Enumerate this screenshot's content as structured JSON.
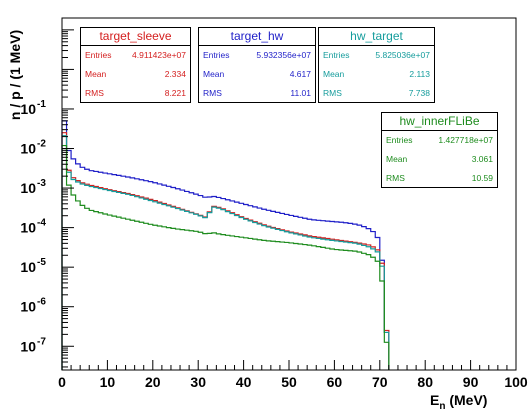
{
  "colors": {
    "target_sleeve": "#d42020",
    "target_hw": "#1f1fc8",
    "hw_target": "#159c9c",
    "hw_innerFLiBe": "#1e8c1e",
    "axis": "#000000"
  },
  "stat_boxes": [
    {
      "name": "target_sleeve",
      "color": "#d42020",
      "entries_label": "Entries",
      "entries": "4.911423e+07",
      "mean_label": "Mean",
      "mean": "2.334",
      "rms_label": "RMS",
      "rms": "8.221"
    },
    {
      "name": "target_hw",
      "color": "#1f1fc8",
      "entries_label": "Entries",
      "entries": "5.932356e+07",
      "mean_label": "Mean",
      "mean": "4.617",
      "rms_label": "RMS",
      "rms": "11.01"
    },
    {
      "name": "hw_target",
      "color": "#159c9c",
      "entries_label": "Entries",
      "entries": "5.825036e+07",
      "mean_label": "Mean",
      "mean": "2.113",
      "rms_label": "RMS",
      "rms": "7.738"
    },
    {
      "name": "hw_innerFLiBe",
      "color": "#1e8c1e",
      "entries_label": "Entries",
      "entries": "1.427718e+07",
      "mean_label": "Mean",
      "mean": "3.061",
      "rms_label": "RMS",
      "rms": "10.59"
    }
  ],
  "chart_data": {
    "type": "line",
    "style": "step-histogram",
    "title": "",
    "xlabel": "E_n (MeV)",
    "xlabel_main": "E",
    "xlabel_sub": "n",
    "xlabel_unit": " (MeV)",
    "ylabel": "n / p / (1 MeV)",
    "xlim": [
      0,
      100
    ],
    "ylim_exponent": [
      -7.6,
      1.3
    ],
    "y_scale": "log",
    "bin_width": 1,
    "x_ticks": [
      0,
      10,
      20,
      30,
      40,
      50,
      60,
      70,
      80,
      90,
      100
    ],
    "x_tick_labels": [
      "0",
      "10",
      "20",
      "30",
      "40",
      "50",
      "60",
      "70",
      "80",
      "90",
      "100"
    ],
    "y_ticks": [
      -7,
      -6,
      -5,
      -4,
      -3,
      -2,
      -1
    ],
    "y_tick_labels": [
      {
        "base": "10",
        "exp": "-7"
      },
      {
        "base": "10",
        "exp": "-6"
      },
      {
        "base": "10",
        "exp": "-5"
      },
      {
        "base": "10",
        "exp": "-4"
      },
      {
        "base": "10",
        "exp": "-3"
      },
      {
        "base": "10",
        "exp": "-2"
      },
      {
        "base": "10",
        "exp": "-1"
      }
    ],
    "grid": false,
    "series": [
      {
        "name": "target_hw",
        "color": "#1f1fc8",
        "points": [
          [
            0,
            -0.7
          ],
          [
            1,
            -1.9
          ],
          [
            2,
            -2.2
          ],
          [
            4,
            -2.45
          ],
          [
            6,
            -2.55
          ],
          [
            10,
            -2.63
          ],
          [
            15,
            -2.73
          ],
          [
            20,
            -2.85
          ],
          [
            25,
            -3.0
          ],
          [
            30,
            -3.17
          ],
          [
            32,
            -3.25
          ],
          [
            33,
            -3.2
          ],
          [
            35,
            -3.25
          ],
          [
            40,
            -3.4
          ],
          [
            45,
            -3.55
          ],
          [
            50,
            -3.68
          ],
          [
            55,
            -3.8
          ],
          [
            60,
            -3.85
          ],
          [
            62,
            -3.87
          ],
          [
            64,
            -3.9
          ],
          [
            66,
            -3.95
          ],
          [
            68,
            -4.05
          ],
          [
            69,
            -4.15
          ],
          [
            70,
            -4.35
          ],
          [
            71,
            -5.3
          ],
          [
            72,
            -8
          ]
        ]
      },
      {
        "name": "target_sleeve",
        "color": "#d42020",
        "points": [
          [
            0,
            -0.8
          ],
          [
            1,
            -2.4
          ],
          [
            2,
            -2.7
          ],
          [
            4,
            -2.85
          ],
          [
            6,
            -2.92
          ],
          [
            10,
            -3.03
          ],
          [
            15,
            -3.15
          ],
          [
            20,
            -3.3
          ],
          [
            25,
            -3.48
          ],
          [
            30,
            -3.67
          ],
          [
            32,
            -3.75
          ],
          [
            33,
            -3.45
          ],
          [
            35,
            -3.5
          ],
          [
            40,
            -3.75
          ],
          [
            45,
            -3.95
          ],
          [
            50,
            -4.1
          ],
          [
            55,
            -4.22
          ],
          [
            60,
            -4.3
          ],
          [
            65,
            -4.38
          ],
          [
            68,
            -4.45
          ],
          [
            70,
            -4.6
          ],
          [
            71,
            -5.2
          ],
          [
            72,
            -8
          ]
        ]
      },
      {
        "name": "hw_target",
        "color": "#159c9c",
        "points": [
          [
            0,
            -0.9
          ],
          [
            1,
            -2.45
          ],
          [
            2,
            -2.75
          ],
          [
            4,
            -2.88
          ],
          [
            6,
            -2.95
          ],
          [
            10,
            -3.05
          ],
          [
            15,
            -3.17
          ],
          [
            20,
            -3.33
          ],
          [
            25,
            -3.5
          ],
          [
            30,
            -3.68
          ],
          [
            32,
            -3.77
          ],
          [
            33,
            -3.47
          ],
          [
            35,
            -3.52
          ],
          [
            40,
            -3.77
          ],
          [
            45,
            -3.97
          ],
          [
            50,
            -4.12
          ],
          [
            55,
            -4.25
          ],
          [
            60,
            -4.33
          ],
          [
            65,
            -4.4
          ],
          [
            68,
            -4.5
          ],
          [
            70,
            -4.65
          ],
          [
            71,
            -5.3
          ],
          [
            72,
            -8
          ]
        ]
      },
      {
        "name": "hw_innerFLiBe",
        "color": "#1e8c1e",
        "points": [
          [
            0,
            -1.1
          ],
          [
            1,
            -2.75
          ],
          [
            2,
            -3.1
          ],
          [
            4,
            -3.4
          ],
          [
            6,
            -3.55
          ],
          [
            10,
            -3.67
          ],
          [
            15,
            -3.8
          ],
          [
            20,
            -3.93
          ],
          [
            25,
            -4.03
          ],
          [
            30,
            -4.1
          ],
          [
            32,
            -4.17
          ],
          [
            33,
            -4.12
          ],
          [
            35,
            -4.17
          ],
          [
            40,
            -4.25
          ],
          [
            45,
            -4.33
          ],
          [
            50,
            -4.38
          ],
          [
            55,
            -4.45
          ],
          [
            60,
            -4.55
          ],
          [
            65,
            -4.6
          ],
          [
            68,
            -4.7
          ],
          [
            70,
            -4.9
          ],
          [
            71,
            -5.8
          ],
          [
            72,
            -8
          ]
        ]
      }
    ]
  }
}
